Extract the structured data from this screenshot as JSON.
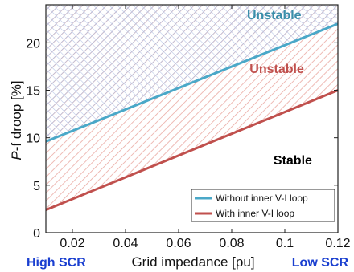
{
  "chart_data": {
    "type": "line",
    "xlabel": "Grid impedance [pu]",
    "ylabel": "P-f droop [%]",
    "ylabel_italic_part": "P",
    "ylabel_rest": "-f droop [%]",
    "xlim": [
      0.01,
      0.12
    ],
    "ylim": [
      0,
      24
    ],
    "xticks": [
      0.02,
      0.04,
      0.06,
      0.08,
      0.1,
      0.12
    ],
    "xtick_labels": [
      "0.02",
      "0.04",
      "0.06",
      "0.08",
      "0.1",
      "0.12"
    ],
    "yticks": [
      0,
      5,
      10,
      15,
      20
    ],
    "ytick_labels": [
      "0",
      "5",
      "10",
      "15",
      "20"
    ],
    "grid": false,
    "legend_position": "bottom-right",
    "series": [
      {
        "name": "Without inner V-I loop",
        "color": "#4aa8c8",
        "x": [
          0.01,
          0.12
        ],
        "y": [
          9.6,
          22.0
        ]
      },
      {
        "name": "With inner V-I loop",
        "color": "#c0504d",
        "x": [
          0.01,
          0.12
        ],
        "y": [
          2.4,
          15.0
        ]
      }
    ],
    "annotations": [
      {
        "text": "Unstable",
        "color": "#3a8eaa",
        "x": 0.096,
        "y": 22.5
      },
      {
        "text": "Unstable",
        "color": "#c0504d",
        "x": 0.097,
        "y": 16.8
      },
      {
        "text": "Stable",
        "color": "#000000",
        "x": 0.103,
        "y": 7.2
      }
    ],
    "regions": [
      {
        "description": "cross-hatched",
        "color": "#8fa8d8",
        "above": "Without inner V-I loop"
      },
      {
        "description": "diagonal-hatched",
        "color": "#e8a8a0",
        "above": "With inner V-I loop"
      }
    ],
    "bottom_labels": {
      "left": "High SCR",
      "right": "Low SCR",
      "color": "#1a3fd0"
    }
  }
}
